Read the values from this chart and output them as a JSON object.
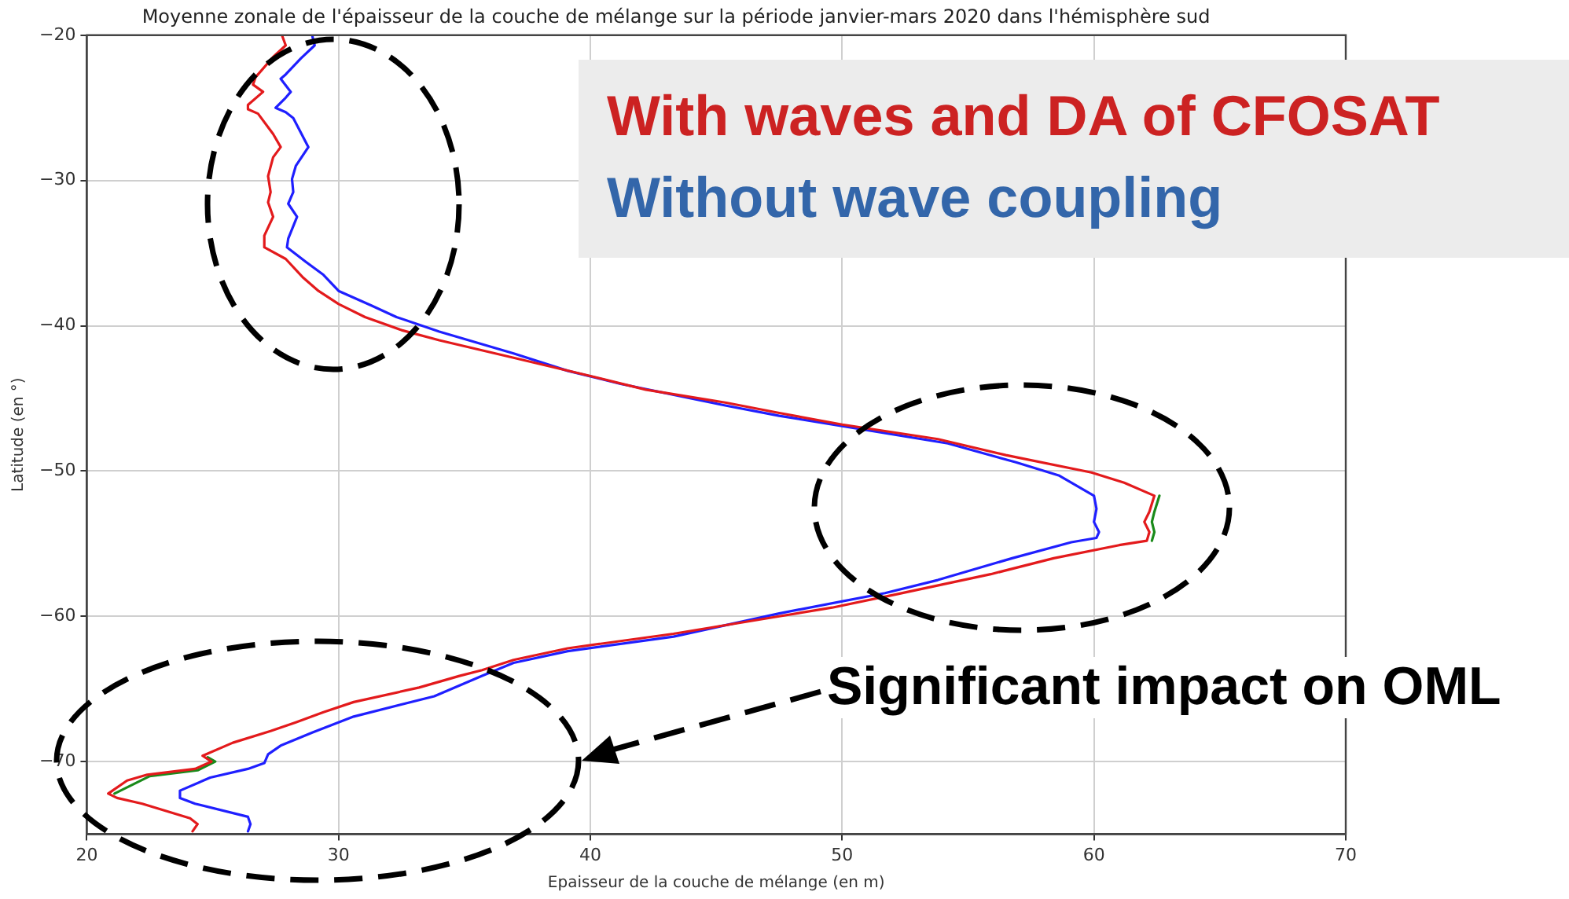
{
  "chart_data": {
    "type": "line",
    "title": "Moyenne zonale de l'épaisseur de la couche de mélange sur la période janvier-mars 2020 dans l'hémisphère sud",
    "xlabel": "Epaisseur de la couche de mélange (en m)",
    "ylabel": "Latitude (en °)",
    "xlim": [
      20,
      70
    ],
    "xticks": [
      20,
      30,
      40,
      50,
      60,
      70
    ],
    "ylim": [
      -75,
      -20
    ],
    "yticks": [
      {
        "value": -20,
        "label": "−20"
      },
      {
        "value": -30,
        "label": "−30"
      },
      {
        "value": -40,
        "label": "−40"
      },
      {
        "value": -50,
        "label": "−50"
      },
      {
        "value": -60,
        "label": "−60"
      },
      {
        "value": -70,
        "label": "−70"
      }
    ],
    "grid": true,
    "legend": "top right",
    "marker": "none",
    "line_style": "solid",
    "annotations": [
      "Significant impact on OML"
    ],
    "series": [
      {
        "name": "With waves and DA of CFOSAT",
        "color": "#e31a1c",
        "x": [
          27.75,
          27.9,
          27.4,
          26.7,
          26.6,
          27.0,
          26.4,
          26.4,
          26.8,
          27.4,
          27.7,
          27.4,
          27.2,
          27.3,
          27.2,
          27.4,
          27.05,
          27.05,
          27.9,
          28.6,
          29.2,
          30.0,
          31.05,
          32.5,
          34.0,
          36.95,
          40.1,
          42.2,
          45.4,
          47.5,
          50.0,
          53.8,
          56.5,
          59.9,
          61.2,
          62.4,
          62.2,
          62.0,
          62.2,
          62.1,
          61.0,
          58.4,
          55.9,
          52.1,
          49.6,
          47.5,
          43.3,
          39.1,
          36.95,
          35.7,
          34.8,
          33.2,
          30.6,
          29.4,
          28.3,
          27.3,
          25.8,
          24.6,
          24.95,
          24.3,
          22.4,
          21.6,
          20.85,
          21.2,
          22.2,
          24.1,
          24.4,
          24.2
        ],
        "values": [
          -20,
          -20.7,
          -21.5,
          -22.9,
          -23.4,
          -23.9,
          -24.8,
          -25.1,
          -25.4,
          -26.8,
          -27.7,
          -28.4,
          -29.7,
          -30.8,
          -31.5,
          -32.5,
          -33.8,
          -34.6,
          -35.4,
          -36.7,
          -37.6,
          -38.5,
          -39.4,
          -40.3,
          -41.0,
          -42.2,
          -43.5,
          -44.4,
          -45.3,
          -46.0,
          -46.8,
          -47.8,
          -48.9,
          -50.1,
          -50.8,
          -51.7,
          -52.8,
          -53.5,
          -54.2,
          -54.8,
          -55.1,
          -56.0,
          -57.1,
          -58.5,
          -59.4,
          -60.0,
          -61.2,
          -62.2,
          -63.0,
          -63.7,
          -64.1,
          -64.9,
          -65.9,
          -66.6,
          -67.3,
          -67.9,
          -68.7,
          -69.6,
          -70.0,
          -70.5,
          -70.9,
          -71.3,
          -72.2,
          -72.5,
          -72.9,
          -73.9,
          -74.3,
          -74.8
        ]
      },
      {
        "color": "#1a8a1a",
        "x": [
          62.6,
          62.4,
          62.3,
          62.4,
          62.3,
          50,
          24.8,
          25.1,
          24.4,
          22.5,
          21.1
        ],
        "values": [
          -51.7,
          -52.8,
          -53.5,
          -54.2,
          -54.8,
          null,
          -69.7,
          -70.0,
          -70.6,
          -71.0,
          -72.2
        ]
      },
      {
        "name": "Without wave coupling",
        "color": "#1f1fff",
        "x": [
          28.95,
          29.05,
          28.5,
          27.9,
          27.7,
          28.1,
          27.9,
          27.5,
          27.9,
          28.2,
          28.8,
          28.3,
          28.15,
          28.2,
          28.0,
          28.35,
          28.0,
          27.95,
          28.7,
          29.4,
          30.0,
          31.3,
          32.3,
          34.0,
          36.95,
          39.1,
          41.2,
          45.4,
          47.5,
          50.0,
          54.2,
          56.9,
          58.6,
          60.0,
          60.1,
          60.0,
          60.2,
          60.1,
          59.1,
          56.75,
          53.8,
          51.7,
          47.5,
          43.3,
          39.1,
          36.95,
          35.7,
          33.8,
          30.6,
          28.95,
          27.7,
          27.2,
          27.05,
          26.4,
          24.9,
          23.7,
          23.7,
          24.3,
          26.4,
          26.5,
          26.4
        ],
        "values": [
          -20,
          -20.7,
          -21.6,
          -22.7,
          -23.0,
          -23.9,
          -24.3,
          -25.0,
          -25.3,
          -25.7,
          -27.7,
          -29.0,
          -29.9,
          -30.8,
          -31.6,
          -32.5,
          -34.0,
          -34.6,
          -35.6,
          -36.5,
          -37.6,
          -38.6,
          -39.4,
          -40.4,
          -41.9,
          -43.1,
          -44.0,
          -45.5,
          -46.2,
          -46.9,
          -48.1,
          -49.4,
          -50.3,
          -51.7,
          -52.6,
          -53.5,
          -54.2,
          -54.6,
          -54.9,
          -56.0,
          -57.5,
          -58.4,
          -59.8,
          -61.4,
          -62.4,
          -63.2,
          -64.1,
          -65.5,
          -66.9,
          -68.0,
          -68.9,
          -69.5,
          -70.1,
          -70.5,
          -71.1,
          -72.0,
          -72.5,
          -72.9,
          -73.8,
          -74.3,
          -74.8
        ]
      }
    ]
  }
}
